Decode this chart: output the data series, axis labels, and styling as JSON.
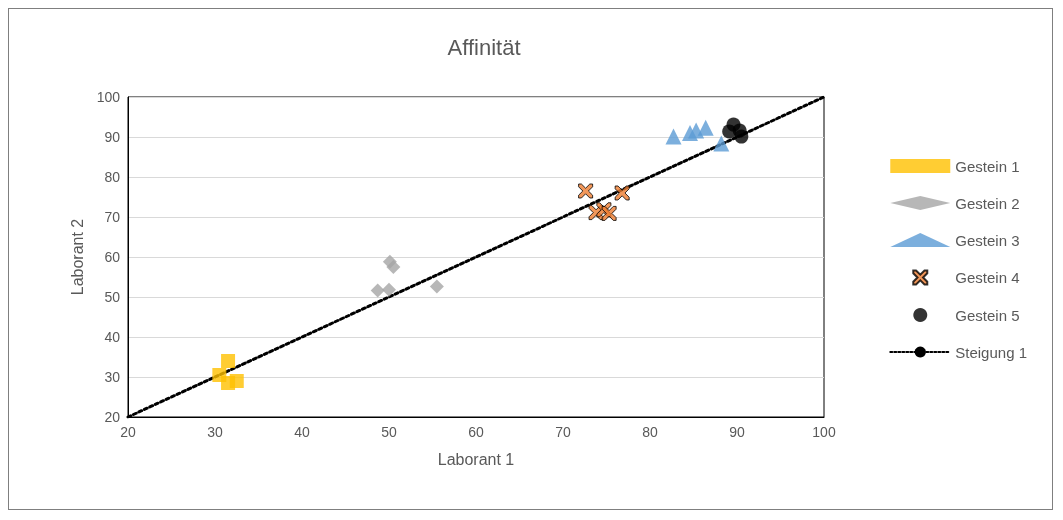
{
  "chart_data": {
    "type": "scatter",
    "title": "Affinität",
    "xlabel": "Laborant 1",
    "ylabel": "Laborant 2",
    "xlim": [
      20,
      100
    ],
    "xticks": [
      20,
      30,
      40,
      50,
      60,
      70,
      80,
      90,
      100
    ],
    "ylim": [
      20,
      100
    ],
    "yticks": [
      20,
      30,
      40,
      50,
      60,
      70,
      80,
      90,
      100
    ],
    "grid": "y",
    "legend": "right",
    "series": [
      {
        "name": "Gestein 1",
        "color": "#ffc000",
        "marker": "square",
        "x": [
          31.5,
          30.5,
          32.5,
          31.5
        ],
        "values": [
          34,
          30.5,
          29,
          28.5
        ]
      },
      {
        "name": "Gestein 2",
        "color": "#a5a5a5",
        "marker": "diamond",
        "x": [
          50.1,
          50.5,
          48.7,
          50,
          55.5
        ],
        "values": [
          58.8,
          57.5,
          51.6,
          51.8,
          52.6
        ]
      },
      {
        "name": "Gestein 3",
        "color": "#5b9bd5",
        "marker": "triangle",
        "x": [
          82.7,
          84.6,
          85.3,
          86.4,
          88.2
        ],
        "values": [
          90.1,
          91,
          91.6,
          92.3,
          88.4
        ]
      },
      {
        "name": "Gestein 4",
        "color": "#ed7d31",
        "marker": "cross",
        "x": [
          72.6,
          73.8,
          74.7,
          75.3,
          76.8
        ],
        "values": [
          76.5,
          71.1,
          71.8,
          70.9,
          76
        ]
      },
      {
        "name": "Gestein 5",
        "color": "#000000",
        "marker": "circle",
        "x": [
          89.1,
          90.5,
          90.3,
          89.6
        ],
        "values": [
          91.4,
          90.1,
          91.6,
          93.1
        ]
      },
      {
        "name": "Steigung 1",
        "type": "line",
        "color": "#000000",
        "marker": "none",
        "line_style": "dotted",
        "x": [
          20,
          100
        ],
        "values": [
          20,
          100
        ]
      }
    ]
  }
}
